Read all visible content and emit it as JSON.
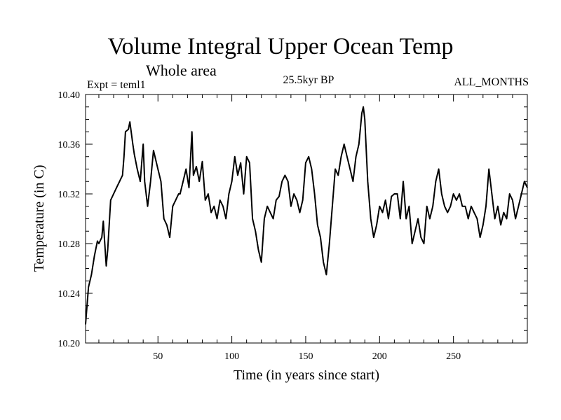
{
  "chart_data": {
    "type": "line",
    "title": "Volume Integral Upper Ocean Temp",
    "subtitle": "Whole area",
    "left_label": "Expt = teml1",
    "center_label": "25.5kyr BP",
    "right_label": "ALL_MONTHS",
    "xlabel": "Time (in years since start)",
    "ylabel": "Temperature (in C)",
    "xlim": [
      1,
      300
    ],
    "ylim": [
      10.2,
      10.4
    ],
    "xticks": [
      50,
      100,
      150,
      200,
      250
    ],
    "yticks": [
      "10.20",
      "10.24",
      "10.28",
      "10.32",
      "10.36",
      "10.40"
    ],
    "grid": false,
    "series": [
      {
        "name": "teml1",
        "x": [
          1,
          3,
          5,
          7,
          9,
          10,
          12,
          13,
          15,
          16,
          18,
          20,
          22,
          24,
          26,
          27,
          28,
          30,
          31,
          33,
          34,
          36,
          38,
          40,
          41,
          43,
          45,
          47,
          49,
          50,
          52,
          54,
          56,
          58,
          60,
          62,
          64,
          65,
          67,
          69,
          71,
          73,
          74,
          76,
          78,
          80,
          82,
          84,
          86,
          88,
          90,
          92,
          94,
          96,
          98,
          100,
          102,
          104,
          106,
          108,
          110,
          112,
          114,
          116,
          118,
          120,
          122,
          124,
          126,
          128,
          130,
          132,
          134,
          136,
          138,
          140,
          142,
          144,
          146,
          148,
          150,
          152,
          154,
          156,
          158,
          160,
          162,
          164,
          166,
          168,
          170,
          172,
          174,
          176,
          178,
          180,
          182,
          184,
          186,
          188,
          189,
          190,
          192,
          194,
          196,
          198,
          200,
          202,
          204,
          206,
          208,
          210,
          212,
          214,
          216,
          218,
          220,
          222,
          224,
          226,
          228,
          230,
          232,
          234,
          236,
          238,
          240,
          242,
          244,
          246,
          248,
          250,
          252,
          254,
          256,
          258,
          260,
          262,
          264,
          266,
          268,
          270,
          272,
          274,
          276,
          278,
          280,
          282,
          284,
          286,
          288,
          290,
          292,
          294,
          296,
          298,
          300
        ],
        "values": [
          10.215,
          10.245,
          10.255,
          10.27,
          10.282,
          10.28,
          10.285,
          10.298,
          10.262,
          10.275,
          10.315,
          10.32,
          10.325,
          10.33,
          10.335,
          10.35,
          10.37,
          10.372,
          10.378,
          10.36,
          10.352,
          10.34,
          10.33,
          10.36,
          10.33,
          10.31,
          10.33,
          10.355,
          10.345,
          10.34,
          10.33,
          10.3,
          10.295,
          10.285,
          10.31,
          10.315,
          10.32,
          10.32,
          10.33,
          10.34,
          10.325,
          10.37,
          10.335,
          10.342,
          10.33,
          10.346,
          10.315,
          10.32,
          10.305,
          10.31,
          10.3,
          10.315,
          10.31,
          10.3,
          10.32,
          10.33,
          10.35,
          10.335,
          10.345,
          10.32,
          10.35,
          10.345,
          10.3,
          10.29,
          10.275,
          10.265,
          10.3,
          10.31,
          10.305,
          10.3,
          10.315,
          10.318,
          10.33,
          10.335,
          10.33,
          10.31,
          10.32,
          10.315,
          10.305,
          10.315,
          10.345,
          10.35,
          10.34,
          10.32,
          10.295,
          10.285,
          10.265,
          10.255,
          10.28,
          10.31,
          10.34,
          10.335,
          10.35,
          10.36,
          10.35,
          10.34,
          10.33,
          10.35,
          10.36,
          10.385,
          10.39,
          10.38,
          10.33,
          10.3,
          10.285,
          10.295,
          10.31,
          10.305,
          10.315,
          10.3,
          10.318,
          10.32,
          10.32,
          10.3,
          10.33,
          10.3,
          10.31,
          10.28,
          10.29,
          10.3,
          10.285,
          10.28,
          10.31,
          10.3,
          10.31,
          10.33,
          10.34,
          10.32,
          10.31,
          10.305,
          10.31,
          10.32,
          10.315,
          10.32,
          10.31,
          10.31,
          10.3,
          10.31,
          10.305,
          10.3,
          10.285,
          10.295,
          10.31,
          10.34,
          10.32,
          10.3,
          10.31,
          10.295,
          10.305,
          10.3,
          10.32,
          10.315,
          10.3,
          10.31,
          10.32,
          10.33,
          10.325
        ]
      }
    ]
  }
}
